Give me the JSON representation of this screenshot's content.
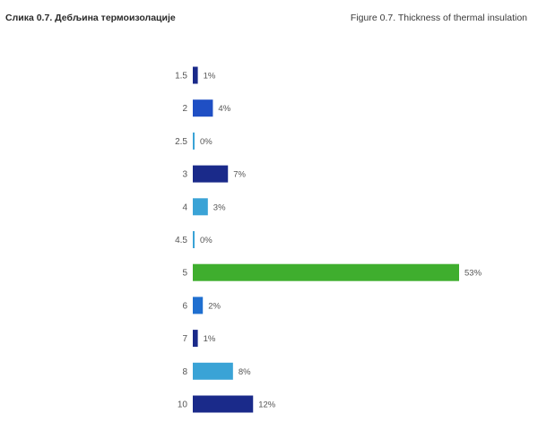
{
  "header": {
    "title_sr": "Слика 0.7. Дебљина термоизолације",
    "title_en": "Figure 0.7. Thickness of thermal insulation"
  },
  "chart_data": {
    "type": "bar",
    "orientation": "horizontal",
    "categories": [
      "1.5",
      "2",
      "2.5",
      "3",
      "4",
      "4.5",
      "5",
      "6",
      "7",
      "8",
      "10"
    ],
    "values": [
      1,
      4,
      0,
      7,
      3,
      0,
      53,
      2,
      1,
      8,
      12
    ],
    "value_labels": [
      "1%",
      "4%",
      "0%",
      "7%",
      "3%",
      "0%",
      "53%",
      "2%",
      "1%",
      "8%",
      "12%"
    ],
    "colors": [
      "#1a2a8a",
      "#1f4fc4",
      "#3aa3d6",
      "#1a2a8a",
      "#3aa3d6",
      "#3aa3d6",
      "#3fae2e",
      "#1f6fd0",
      "#1a2a8a",
      "#3aa3d6",
      "#1a2a8a"
    ],
    "xlim": [
      0,
      53
    ],
    "grid": false,
    "legend": "none"
  }
}
